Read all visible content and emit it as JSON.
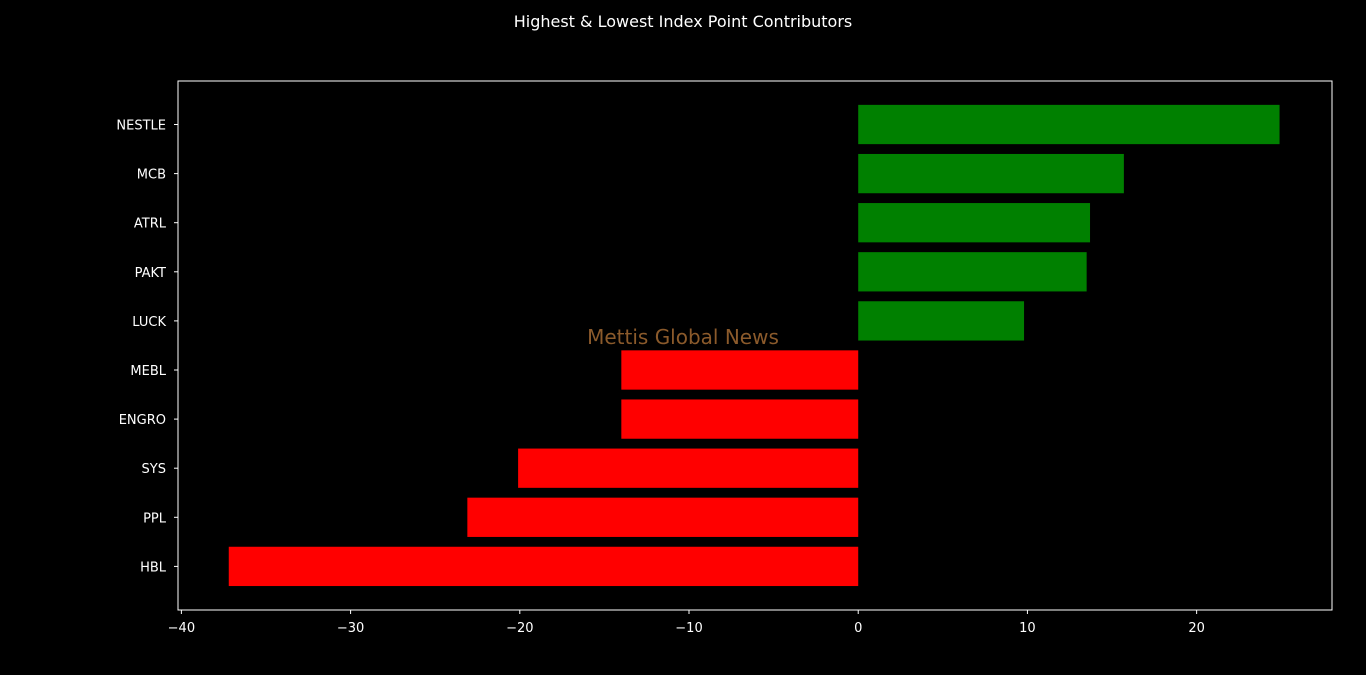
{
  "chart_data": {
    "type": "bar",
    "orientation": "horizontal",
    "title": "Highest & Lowest Index Point Contributors",
    "categories": [
      "NESTLE",
      "MCB",
      "ATRL",
      "PAKT",
      "LUCK",
      "MEBL",
      "ENGRO",
      "SYS",
      "PPL",
      "HBL"
    ],
    "values": [
      24.9,
      15.7,
      13.7,
      13.5,
      9.8,
      -14.0,
      -14.0,
      -20.1,
      -23.1,
      -37.2
    ],
    "colors": {
      "positive": "#008000",
      "negative": "#ff0000"
    },
    "xlim": [
      -40.2,
      28.0
    ],
    "xticks": [
      -40,
      -30,
      -20,
      -10,
      0,
      10,
      20
    ],
    "xtick_labels": [
      "−40",
      "−30",
      "−20",
      "−10",
      "0",
      "10",
      "20"
    ],
    "xlabel": "",
    "ylabel": "",
    "grid": false,
    "background": "#000000",
    "annotation": "Mettis Global News"
  }
}
